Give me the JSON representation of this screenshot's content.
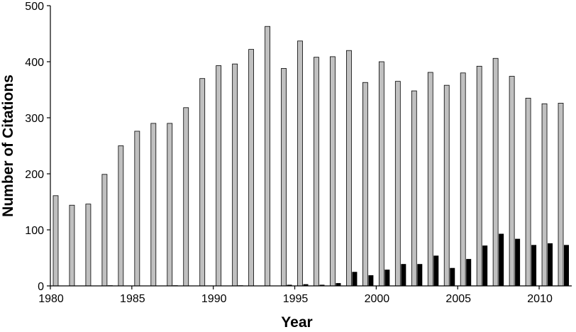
{
  "chart_data": {
    "type": "bar",
    "title": "",
    "xlabel": "Year",
    "ylabel": "Number of Citations",
    "ylim": [
      0,
      500
    ],
    "yticks": [
      0,
      100,
      200,
      300,
      400,
      500
    ],
    "xticks": [
      1980,
      1985,
      1990,
      1995,
      2000,
      2005,
      2010
    ],
    "legend": "none",
    "grid": false,
    "categories": [
      1980,
      1981,
      1982,
      1983,
      1984,
      1985,
      1986,
      1987,
      1988,
      1989,
      1990,
      1991,
      1992,
      1993,
      1994,
      1995,
      1996,
      1997,
      1998,
      1999,
      2000,
      2001,
      2002,
      2003,
      2004,
      2005,
      2006,
      2007,
      2008,
      2009,
      2010,
      2011
    ],
    "series": [
      {
        "color": "#c0c0c0",
        "values": [
          161,
          144,
          146,
          199,
          250,
          276,
          290,
          290,
          318,
          370,
          393,
          396,
          422,
          463,
          388,
          437,
          408,
          409,
          420,
          363,
          400,
          365,
          348,
          381,
          358,
          380,
          392,
          406,
          374,
          335,
          325,
          326
        ]
      },
      {
        "color": "#000000",
        "values": [
          0,
          0,
          0,
          1,
          0,
          0,
          0,
          1,
          0,
          0,
          0,
          1,
          0,
          0,
          2,
          3,
          2,
          5,
          25,
          19,
          29,
          39,
          39,
          54,
          32,
          48,
          72,
          93,
          84,
          73,
          76,
          73
        ]
      }
    ]
  }
}
